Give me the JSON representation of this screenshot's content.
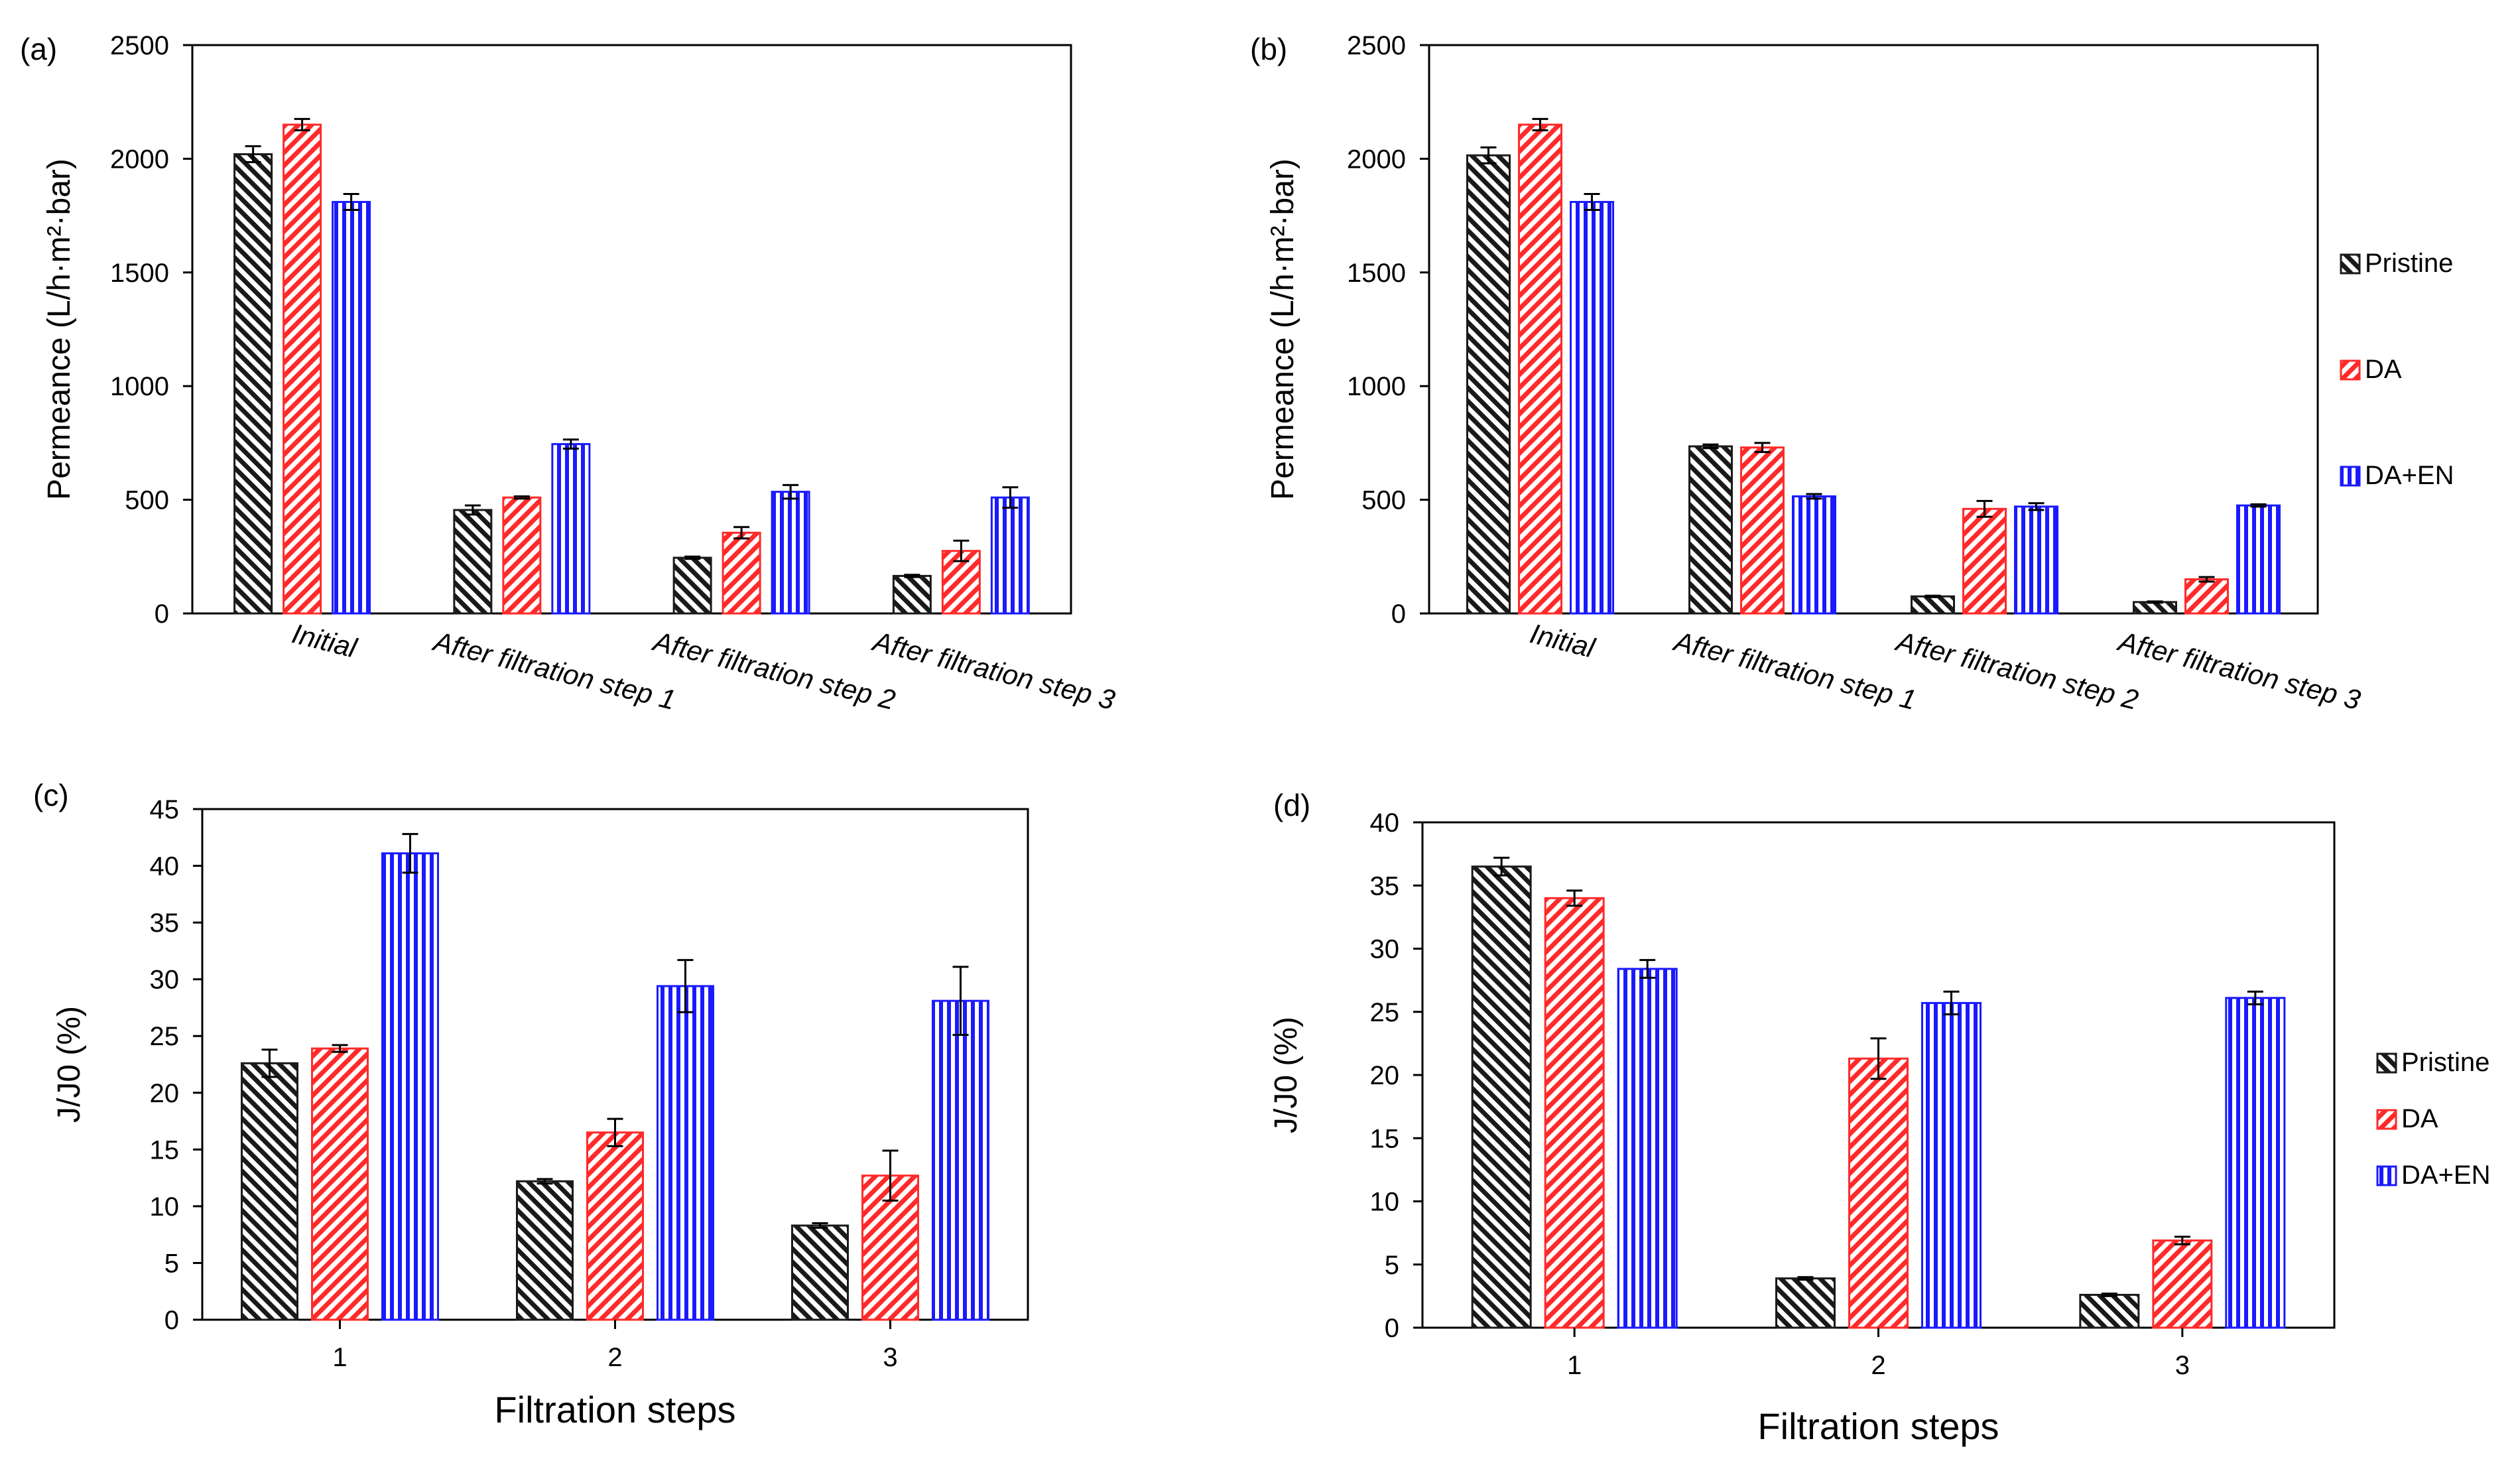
{
  "figure": {
    "colors": {
      "pristine": "#1a1a1a",
      "da": "#ff2a2a",
      "da_en": "#1a1aff",
      "axis": "#000000",
      "background": "#ffffff"
    },
    "legend": {
      "entries": [
        "Pristine",
        "DA",
        "DA+EN"
      ]
    }
  },
  "chart_data": [
    {
      "panel": "(a)",
      "type": "bar",
      "ylabel": "Permeance (L/h·m²·bar)",
      "xlabel": "",
      "ylim": [
        0,
        2500
      ],
      "yticks": [
        0,
        500,
        1000,
        1500,
        2000,
        2500
      ],
      "categories": [
        "Initial",
        "After filtration step 1",
        "After filtration step 2",
        "After filtration step 3"
      ],
      "series": [
        {
          "name": "Pristine",
          "values": [
            2020,
            455,
            245,
            165
          ],
          "errors": [
            35,
            20,
            5,
            5
          ]
        },
        {
          "name": "DA",
          "values": [
            2150,
            510,
            355,
            275
          ],
          "errors": [
            25,
            5,
            25,
            45
          ]
        },
        {
          "name": "DA+EN",
          "values": [
            1810,
            745,
            535,
            510
          ],
          "errors": [
            35,
            20,
            30,
            45
          ]
        }
      ],
      "legend": false
    },
    {
      "panel": "(b)",
      "type": "bar",
      "ylabel": "Permeance (L/h·m²·bar)",
      "xlabel": "",
      "ylim": [
        0,
        2500
      ],
      "yticks": [
        0,
        500,
        1000,
        1500,
        2000,
        2500
      ],
      "categories": [
        "Initial",
        "After filtration step 1",
        "After filtration step 2",
        "After filtration step 3"
      ],
      "series": [
        {
          "name": "Pristine",
          "values": [
            2015,
            735,
            75,
            50
          ],
          "errors": [
            35,
            8,
            3,
            3
          ]
        },
        {
          "name": "DA",
          "values": [
            2150,
            730,
            460,
            150
          ],
          "errors": [
            25,
            20,
            35,
            10
          ]
        },
        {
          "name": "DA+EN",
          "values": [
            1810,
            515,
            470,
            475
          ],
          "errors": [
            35,
            10,
            15,
            5
          ]
        }
      ],
      "legend": true
    },
    {
      "panel": "(c)",
      "type": "bar",
      "ylabel": "J/J0 (%)",
      "xlabel": "Filtration steps",
      "ylim": [
        0,
        45
      ],
      "yticks": [
        0,
        5,
        10,
        15,
        20,
        25,
        30,
        35,
        40,
        45
      ],
      "categories": [
        "1",
        "2",
        "3"
      ],
      "series": [
        {
          "name": "Pristine",
          "values": [
            22.6,
            12.2,
            8.3
          ],
          "errors": [
            1.2,
            0.2,
            0.2
          ]
        },
        {
          "name": "DA",
          "values": [
            23.9,
            16.5,
            12.7
          ],
          "errors": [
            0.3,
            1.2,
            2.2
          ]
        },
        {
          "name": "DA+EN",
          "values": [
            41.1,
            29.4,
            28.1
          ],
          "errors": [
            1.7,
            2.3,
            3.0
          ]
        }
      ],
      "legend": false
    },
    {
      "panel": "(d)",
      "type": "bar",
      "ylabel": "J/J0 (%)",
      "xlabel": "Filtration steps",
      "ylim": [
        0,
        40
      ],
      "yticks": [
        0,
        5,
        10,
        15,
        20,
        25,
        30,
        35,
        40
      ],
      "categories": [
        "1",
        "2",
        "3"
      ],
      "series": [
        {
          "name": "Pristine",
          "values": [
            36.5,
            3.9,
            2.6
          ],
          "errors": [
            0.7,
            0.1,
            0.1
          ]
        },
        {
          "name": "DA",
          "values": [
            34.0,
            21.3,
            6.9
          ],
          "errors": [
            0.6,
            1.6,
            0.3
          ]
        },
        {
          "name": "DA+EN",
          "values": [
            28.4,
            25.7,
            26.1
          ],
          "errors": [
            0.7,
            0.9,
            0.5
          ]
        }
      ],
      "legend": true
    }
  ]
}
